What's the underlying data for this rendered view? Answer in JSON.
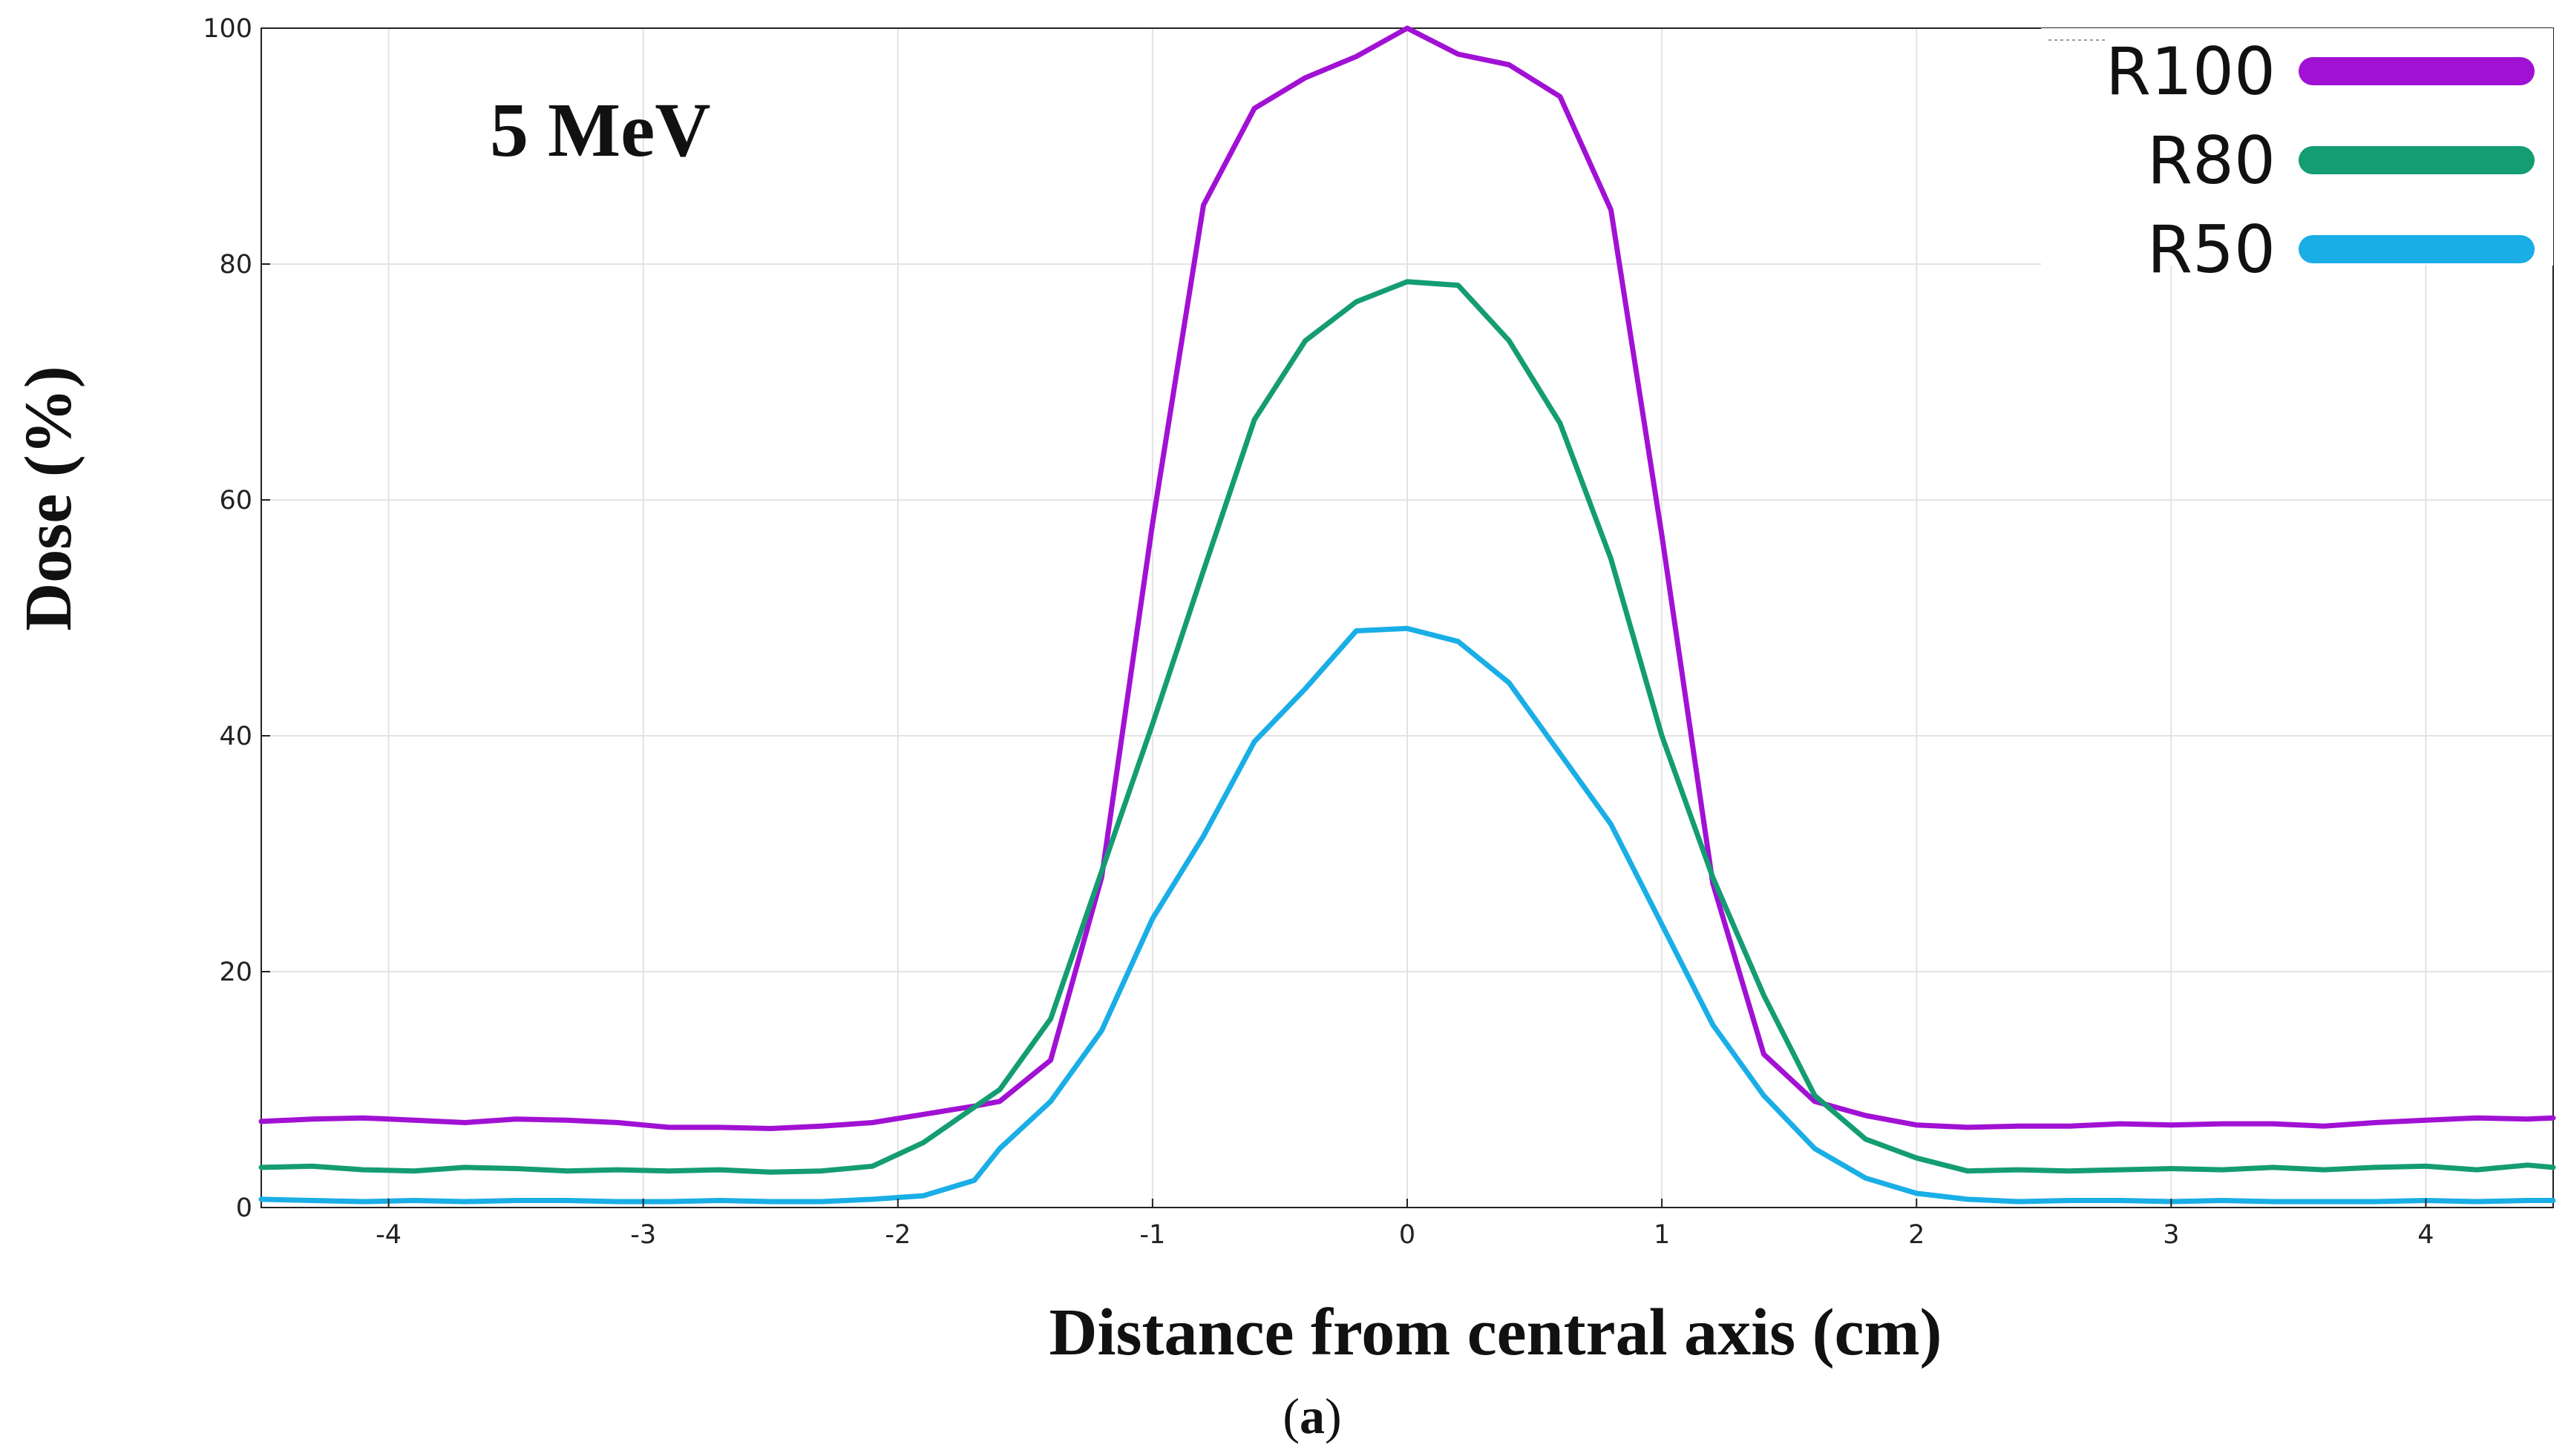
{
  "chart_data": {
    "type": "line",
    "title": "",
    "annotation": "5 MeV",
    "xlabel": "Distance from central axis (cm)",
    "ylabel": "Dose (%)",
    "caption": {
      "open": "(",
      "letter": "a",
      "close": ")"
    },
    "xlim": [
      -4.5,
      4.5
    ],
    "ylim": [
      0,
      100
    ],
    "xticks": [
      -4,
      -3,
      -2,
      -1,
      0,
      1,
      2,
      3,
      4
    ],
    "xtick_labels": [
      "-4",
      "-3",
      "-2",
      "-1",
      "0",
      "1",
      "2",
      "3",
      "4"
    ],
    "yticks": [
      0,
      20,
      40,
      60,
      80,
      100
    ],
    "ytick_labels": [
      "0",
      "20",
      "40",
      "60",
      "80",
      "100"
    ],
    "grid": true,
    "legend_position": "top-right",
    "x": [
      -4.5,
      -4.3,
      -4.1,
      -3.9,
      -3.7,
      -3.5,
      -3.3,
      -3.1,
      -2.9,
      -2.7,
      -2.5,
      -2.3,
      -2.1,
      -1.9,
      -1.7,
      -1.6,
      -1.4,
      -1.2,
      -1.0,
      -0.8,
      -0.6,
      -0.4,
      -0.2,
      0.0,
      0.2,
      0.4,
      0.6,
      0.8,
      1.0,
      1.2,
      1.4,
      1.6,
      1.8,
      2.0,
      2.2,
      2.4,
      2.6,
      2.8,
      3.0,
      3.2,
      3.4,
      3.6,
      3.8,
      4.0,
      4.2,
      4.4,
      4.5
    ],
    "series": [
      {
        "name": "R100",
        "color": "#a111d4",
        "values": [
          7.3,
          7.5,
          7.6,
          7.4,
          7.2,
          7.5,
          7.4,
          7.2,
          6.8,
          6.8,
          6.7,
          6.9,
          7.2,
          7.9,
          8.6,
          9.0,
          12.5,
          28.0,
          58.0,
          85.0,
          93.2,
          95.8,
          97.6,
          100.0,
          97.8,
          96.9,
          94.2,
          84.6,
          57.0,
          27.5,
          13.0,
          9.0,
          7.8,
          7.0,
          6.8,
          6.9,
          6.9,
          7.1,
          7.0,
          7.1,
          7.1,
          6.9,
          7.2,
          7.4,
          7.6,
          7.5,
          7.6
        ]
      },
      {
        "name": "R80",
        "color": "#149c72",
        "values": [
          3.4,
          3.5,
          3.2,
          3.1,
          3.4,
          3.3,
          3.1,
          3.2,
          3.1,
          3.2,
          3.0,
          3.1,
          3.5,
          5.5,
          8.5,
          10.0,
          16.0,
          28.5,
          41.0,
          54.0,
          66.8,
          73.5,
          76.8,
          78.5,
          78.2,
          73.5,
          66.5,
          55.0,
          40.0,
          28.0,
          18.0,
          9.5,
          5.8,
          4.2,
          3.1,
          3.2,
          3.1,
          3.2,
          3.3,
          3.2,
          3.4,
          3.2,
          3.4,
          3.5,
          3.2,
          3.6,
          3.4
        ]
      },
      {
        "name": "R50",
        "color": "#1aaee6",
        "values": [
          0.7,
          0.6,
          0.5,
          0.6,
          0.5,
          0.6,
          0.6,
          0.5,
          0.5,
          0.6,
          0.5,
          0.5,
          0.7,
          1.0,
          2.3,
          5.0,
          9.0,
          15.0,
          24.5,
          31.5,
          39.5,
          44.0,
          48.9,
          49.1,
          48.0,
          44.5,
          38.5,
          32.5,
          24.0,
          15.5,
          9.5,
          5.0,
          2.5,
          1.2,
          0.7,
          0.5,
          0.6,
          0.6,
          0.5,
          0.6,
          0.5,
          0.5,
          0.5,
          0.6,
          0.5,
          0.6,
          0.6
        ]
      }
    ]
  }
}
